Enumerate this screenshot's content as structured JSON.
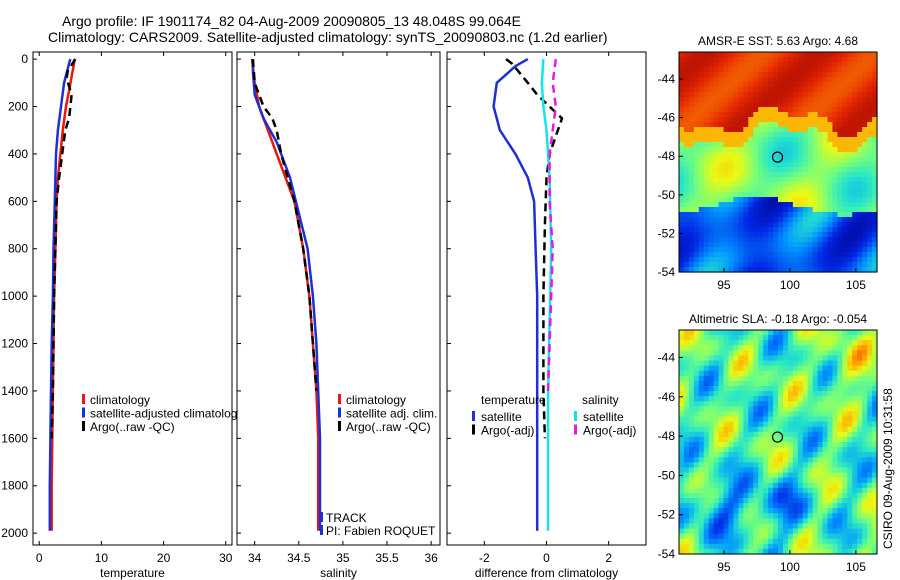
{
  "title_line1": "Argo profile: IF 1901174_82 04-Aug-2009 20090805_13 48.048S 99.064E",
  "title_line2": "Climatology: CARS2009. Satellite-adjusted climatology: synTS_20090803.nc (1.2d earlier)",
  "side_stamp": "CSIRO 09-Aug-2009 10:31:58",
  "colors": {
    "red": "#e8190c",
    "blue": "#1f2fd6",
    "black": "#000000",
    "cyan": "#14e6e6",
    "magenta": "#e619e6"
  },
  "chart_data": [
    {
      "type": "line",
      "xlabel": "temperature",
      "ylabel": "",
      "xlim": [
        -1,
        31
      ],
      "ylim": [
        2050,
        -30
      ],
      "y_reversed": true,
      "xticks": [
        0,
        10,
        20,
        30
      ],
      "yticks": [
        0,
        200,
        400,
        600,
        800,
        1000,
        1200,
        1400,
        1600,
        1800,
        2000
      ],
      "legend": [
        "climatology",
        "satellite-adjusted climatolog",
        "Argo(..raw -QC)"
      ],
      "series": [
        {
          "name": "climatology",
          "color": "red",
          "style": "solid",
          "x": [
            5.7,
            5.6,
            5.3,
            4.9,
            4.3,
            3.8,
            3.4,
            3.0,
            2.8,
            2.6,
            2.4,
            2.3,
            2.2,
            2.1,
            2.0,
            2.0
          ],
          "y": [
            0,
            20,
            60,
            120,
            200,
            300,
            400,
            500,
            600,
            800,
            1000,
            1200,
            1400,
            1600,
            1800,
            1990
          ]
        },
        {
          "name": "satellite-adjusted climatolog",
          "color": "blue",
          "style": "solid",
          "x": [
            5.0,
            4.7,
            4.0,
            3.5,
            3.0,
            2.7,
            2.5,
            2.3,
            2.2,
            2.0,
            1.9,
            1.8,
            1.7,
            1.7
          ],
          "y": [
            0,
            30,
            100,
            200,
            300,
            400,
            600,
            800,
            1000,
            1200,
            1400,
            1600,
            1800,
            1990
          ]
        },
        {
          "name": "Argo(..raw -QC)",
          "color": "black",
          "style": "dashed",
          "x": [
            5.8,
            4.6,
            4.4,
            5.2,
            4.8,
            4.2,
            3.7,
            3.2,
            2.8,
            2.6,
            2.4,
            2.3,
            2.2,
            2.0
          ],
          "y": [
            0,
            50,
            80,
            150,
            250,
            300,
            400,
            500,
            600,
            800,
            1000,
            1200,
            1400,
            1600
          ]
        }
      ]
    },
    {
      "type": "line",
      "xlabel": "salinity",
      "ylabel": "",
      "xlim": [
        33.8,
        36.1
      ],
      "ylim": [
        2050,
        -30
      ],
      "y_reversed": true,
      "xticks": [
        34,
        34.5,
        35,
        35.5,
        36
      ],
      "yticks": [],
      "legend": [
        "climatology",
        "satellite adj. clim.",
        "Argo(..raw -QC)"
      ],
      "annotations": [
        "TRACK",
        "PI: Fabien ROQUET"
      ],
      "series": [
        {
          "name": "climatology",
          "color": "red",
          "style": "solid",
          "x": [
            33.97,
            34.0,
            34.05,
            34.15,
            34.25,
            34.35,
            34.45,
            34.55,
            34.62,
            34.66,
            34.7,
            34.72,
            34.72
          ],
          "y": [
            0,
            100,
            200,
            300,
            400,
            500,
            600,
            800,
            1000,
            1200,
            1400,
            1600,
            1990
          ]
        },
        {
          "name": "satellite adj. clim.",
          "color": "blue",
          "style": "solid",
          "x": [
            33.98,
            33.98,
            34.0,
            34.1,
            34.25,
            34.4,
            34.5,
            34.6,
            34.66,
            34.7,
            34.72,
            34.74,
            34.74
          ],
          "y": [
            0,
            50,
            150,
            250,
            350,
            500,
            650,
            800,
            1000,
            1200,
            1400,
            1600,
            1990
          ]
        },
        {
          "name": "Argo(..raw -QC)",
          "color": "black",
          "style": "dashed",
          "x": [
            33.98,
            34.0,
            34.1,
            34.2,
            34.25,
            34.3,
            34.45,
            34.55,
            34.62,
            34.66,
            34.7
          ],
          "y": [
            0,
            100,
            200,
            250,
            300,
            400,
            600,
            800,
            1000,
            1200,
            1400
          ]
        }
      ]
    },
    {
      "type": "line",
      "xlabel": "difference from climatology",
      "ylabel": "",
      "xlim": [
        -3.2,
        3.2
      ],
      "ylim": [
        2050,
        -30
      ],
      "y_reversed": true,
      "xticks": [
        -2,
        0,
        2
      ],
      "yticks": [],
      "legend_left_title": "temperature",
      "legend_right_title": "salinity",
      "legend_left": [
        "satellite",
        "Argo(-adj)"
      ],
      "legend_right": [
        "satellite",
        "Argo(-adj)"
      ],
      "series": [
        {
          "name": "satellite",
          "group": "temperature",
          "color": "blue",
          "style": "solid",
          "x": [
            -0.6,
            -1.0,
            -1.6,
            -1.7,
            -1.5,
            -1.0,
            -0.6,
            -0.4,
            -0.35,
            -0.3,
            -0.3,
            -0.3,
            -0.3,
            -0.3,
            -0.3
          ],
          "y": [
            0,
            30,
            100,
            200,
            300,
            400,
            500,
            600,
            800,
            1000,
            1200,
            1400,
            1600,
            1800,
            1990
          ]
        },
        {
          "name": "Argo(-adj)",
          "group": "temperature",
          "color": "black",
          "style": "dashed",
          "x": [
            -1.3,
            -1.1,
            -0.6,
            -0.3,
            0.5,
            0.1,
            0.0,
            -0.05,
            -0.1,
            -0.1,
            -0.1,
            -0.05
          ],
          "y": [
            0,
            20,
            100,
            150,
            250,
            400,
            500,
            700,
            1000,
            1200,
            1400,
            1600
          ]
        },
        {
          "name": "satellite",
          "group": "salinity",
          "color": "cyan",
          "style": "solid",
          "x": [
            -0.1,
            -0.15,
            -0.1,
            0.0,
            0.05,
            0.1,
            0.15,
            0.12,
            0.08,
            0.05,
            0.05,
            0.05
          ],
          "y": [
            0,
            100,
            200,
            300,
            400,
            500,
            800,
            1000,
            1200,
            1400,
            1600,
            1990
          ]
        },
        {
          "name": "Argo(-adj)",
          "group": "salinity",
          "color": "magenta",
          "style": "dashed",
          "x": [
            0.3,
            0.2,
            0.3,
            0.2,
            0.1,
            0.1,
            0.2,
            0.15,
            0.1,
            0.05
          ],
          "y": [
            0,
            100,
            200,
            300,
            400,
            600,
            800,
            1000,
            1200,
            1400
          ]
        }
      ]
    },
    {
      "type": "heatmap",
      "title": "AMSR-E SST: 5.63 Argo: 4.68",
      "xlim": [
        91.6,
        106.6
      ],
      "ylim": [
        -54,
        -42.6
      ],
      "xticks": [
        95,
        100,
        105
      ],
      "yticks": [
        -44,
        -46,
        -48,
        -50,
        -52,
        -54
      ],
      "marker": {
        "lon": 99.064,
        "lat": -48.048
      }
    },
    {
      "type": "heatmap",
      "title": "Altimetric SLA: -0.18 Argo: -0.054",
      "xlim": [
        91.6,
        106.6
      ],
      "ylim": [
        -54,
        -42.6
      ],
      "xticks": [
        95,
        100,
        105
      ],
      "yticks": [
        -44,
        -46,
        -48,
        -50,
        -52,
        -54
      ],
      "marker": {
        "lon": 99.064,
        "lat": -48.048
      }
    }
  ]
}
